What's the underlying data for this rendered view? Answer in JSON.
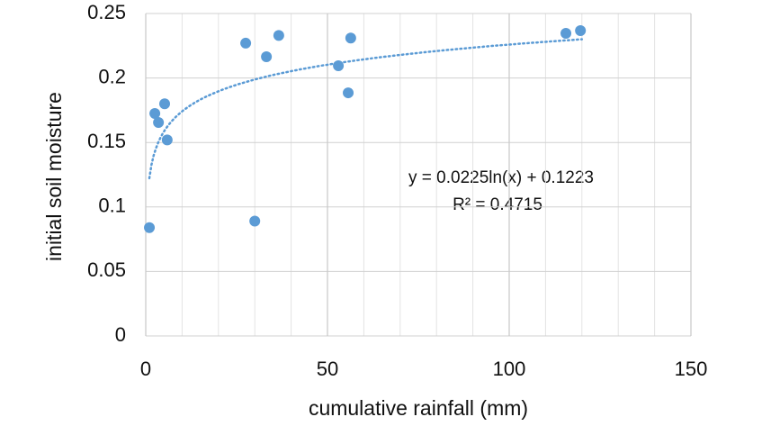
{
  "chart_data": {
    "type": "scatter",
    "x_label": "cumulative rainfall (mm)",
    "y_label": "initial soil moisture",
    "x": [
      1,
      2.5,
      3.5,
      5.2,
      5.9,
      27.5,
      30,
      33.2,
      36.6,
      53,
      55.7,
      56.4,
      115.6,
      119.6
    ],
    "values": [
      0.084,
      0.1725,
      0.1655,
      0.18,
      0.152,
      0.227,
      0.089,
      0.2165,
      0.233,
      0.2095,
      0.1885,
      0.231,
      0.2346,
      0.2367
    ],
    "color": "#5b9bd5",
    "xlim": [
      0,
      150
    ],
    "xticks": [
      0,
      50,
      100,
      150
    ],
    "xminorticks": [
      10,
      20,
      30,
      40,
      60,
      70,
      80,
      90,
      110,
      120,
      130,
      140
    ],
    "ylim": [
      0,
      0.25
    ],
    "yticks": [
      0,
      0.05,
      0.1,
      0.15,
      0.2,
      0.25
    ],
    "grid": true,
    "trendline": {
      "equation": "y = 0.0225ln(x) + 0.1223",
      "r_squared": "R² = 0.4715",
      "a": 0.0225,
      "b": 0.1223,
      "x_range": [
        1,
        120
      ]
    }
  }
}
